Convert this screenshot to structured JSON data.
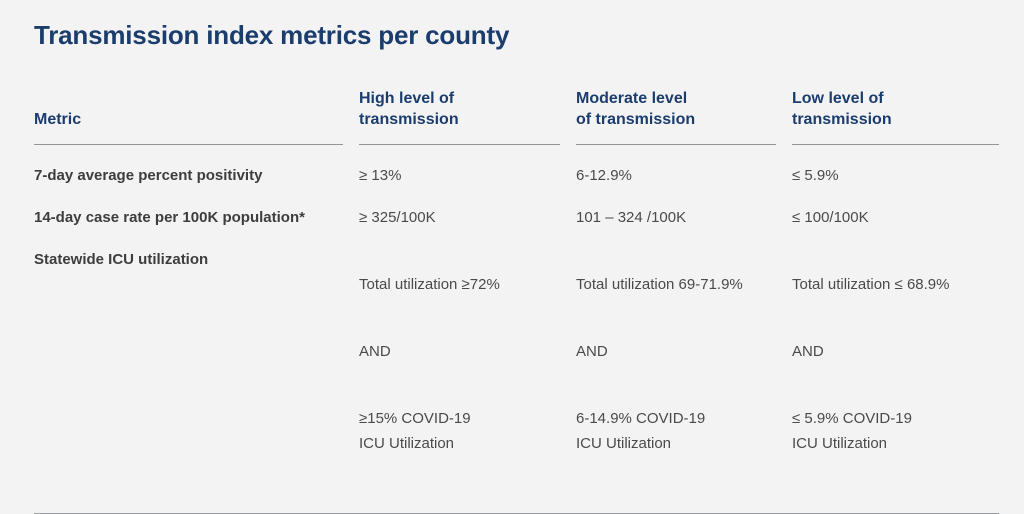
{
  "page": {
    "title": "Transmission index metrics per county"
  },
  "colors": {
    "background": "#f3f3f4",
    "heading_navy": "#1b3d6d",
    "metric_label_text": "#3d3d3d",
    "value_text": "#4a4a4a",
    "rule_gray": "#939598"
  },
  "table": {
    "columns": [
      {
        "label": "Metric"
      },
      {
        "label": "High level of\ntransmission"
      },
      {
        "label": "Moderate level\nof transmission"
      },
      {
        "label": "Low level of\ntransmission"
      }
    ],
    "rows": [
      {
        "metric": "7-day average percent positivity",
        "high": "≥ 13%",
        "moderate": "6-12.9%",
        "low": "≤ 5.9%"
      },
      {
        "metric": "14-day case rate per 100K population*",
        "high": "≥ 325/100K",
        "moderate": "101 – 324 /100K",
        "low": "≤ 100/100K"
      },
      {
        "metric": "Statewide ICU utilization",
        "high": {
          "total": "Total utilization ≥72%",
          "conjunction": "AND",
          "icu": "≥15% COVID-19\nICU Utilization"
        },
        "moderate": {
          "total": "Total utilization 69-71.9%",
          "conjunction": "AND",
          "icu": "6-14.9% COVID-19\nICU Utilization"
        },
        "low": {
          "total": "Total utilization ≤ 68.9%",
          "conjunction": "AND",
          "icu": "≤ 5.9% COVID-19\nICU Utilization"
        }
      }
    ]
  }
}
